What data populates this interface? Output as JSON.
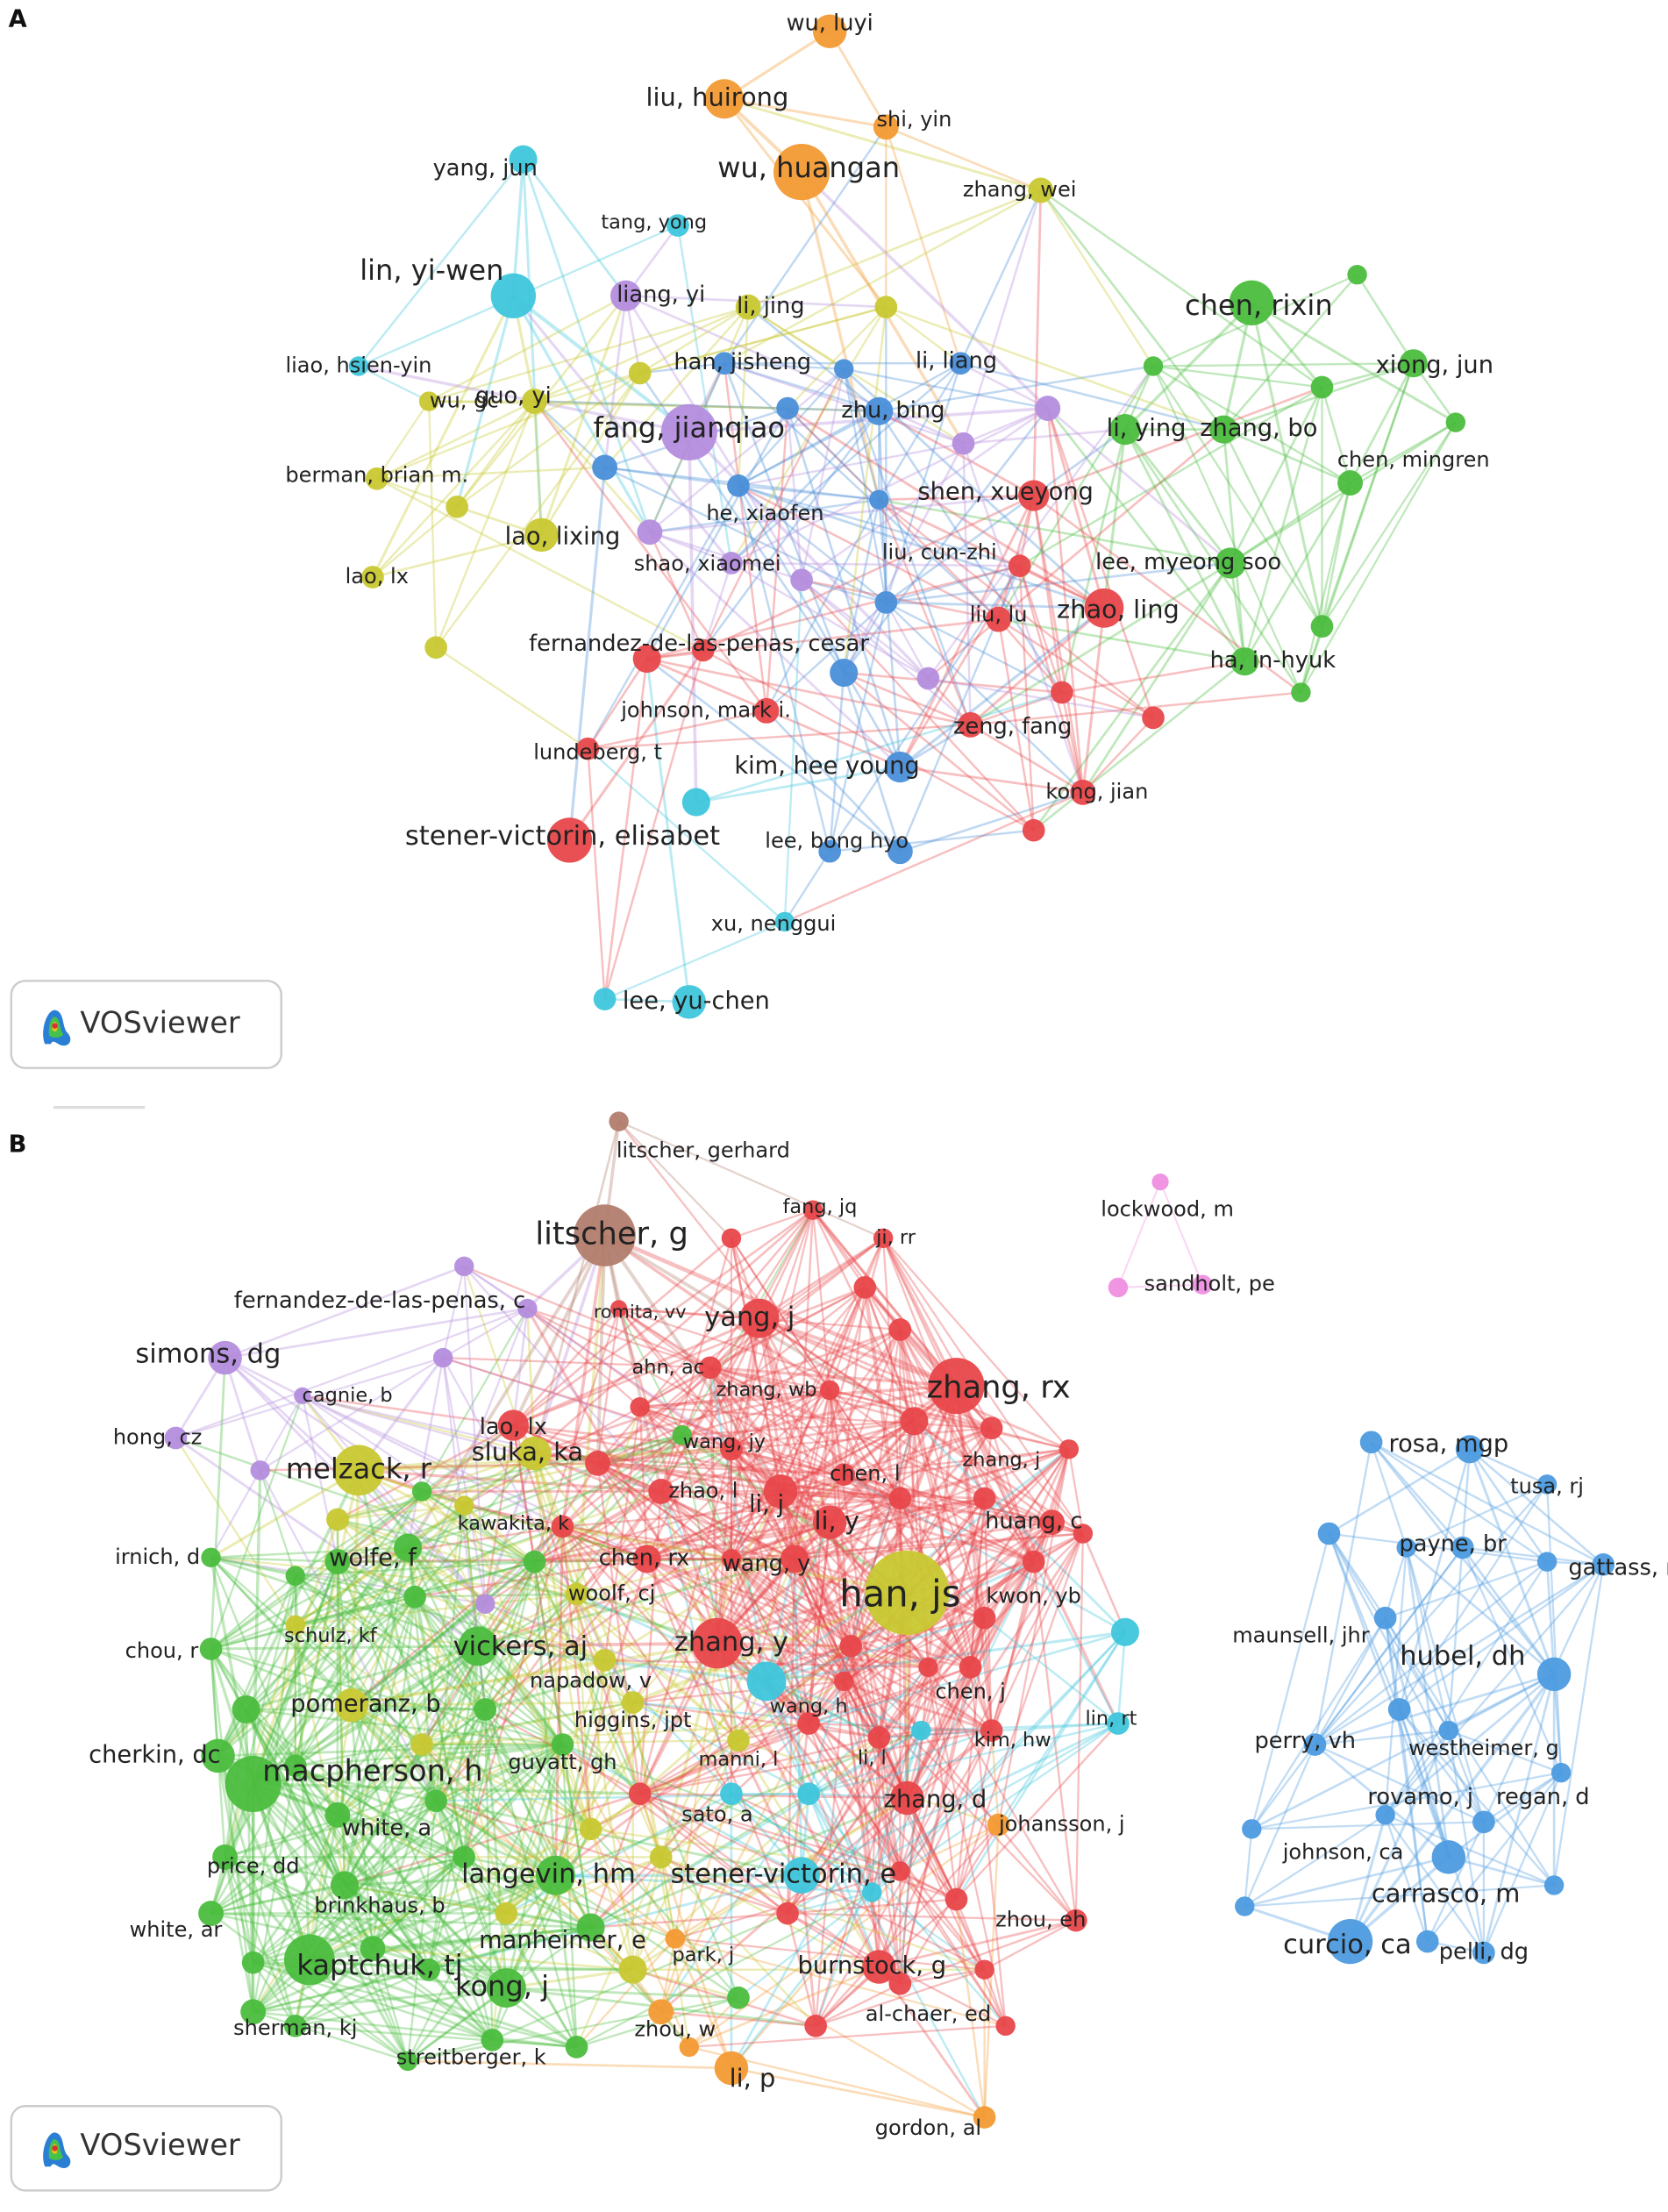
{
  "panels": [
    {
      "label": "A",
      "logo": "VOSviewer",
      "nodes": [
        {
          "label": "wu, luyi"
        },
        {
          "label": "liu, huirong"
        },
        {
          "label": "shi, yin"
        },
        {
          "label": "wu, huangan"
        },
        {
          "label": "yang, jun"
        },
        {
          "label": "zhang, wei"
        },
        {
          "label": "tang, yong"
        },
        {
          "label": "lin, yi-wen"
        },
        {
          "label": "liang, yi"
        },
        {
          "label": "li, jing"
        },
        {
          "label": "chen, rixin"
        },
        {
          "label": "liao, hsien-yin"
        },
        {
          "label": "han, jisheng"
        },
        {
          "label": "li, liang"
        },
        {
          "label": "xiong, jun"
        },
        {
          "label": "wu, gc"
        },
        {
          "label": "guo, yi"
        },
        {
          "label": "fang, jianqiao"
        },
        {
          "label": "zhu, bing"
        },
        {
          "label": "li, ying"
        },
        {
          "label": "zhang, bo"
        },
        {
          "label": "chen, mingren"
        },
        {
          "label": "berman, brian m."
        },
        {
          "label": "shen, xueyong"
        },
        {
          "label": "he, xiaofen"
        },
        {
          "label": "lao, lixing"
        },
        {
          "label": "shao, xiaomei"
        },
        {
          "label": "liu, cun-zhi"
        },
        {
          "label": "lee, myeong soo"
        },
        {
          "label": "lao, lx"
        },
        {
          "label": "zhao, ling"
        },
        {
          "label": "liu, lu"
        },
        {
          "label": "fernandez-de-las-penas, cesar"
        },
        {
          "label": "ha, in-hyuk"
        },
        {
          "label": "johnson, mark i."
        },
        {
          "label": "zeng, fang"
        },
        {
          "label": "lundeberg, t"
        },
        {
          "label": "kim, hee young"
        },
        {
          "label": "kong, jian"
        },
        {
          "label": "stener-victorin, elisabet"
        },
        {
          "label": "lee, bong hyo"
        },
        {
          "label": "xu, nenggui"
        },
        {
          "label": "lee, yu-chen"
        }
      ]
    },
    {
      "label": "B",
      "logo": "VOSviewer",
      "nodes": [
        {
          "label": "litscher, gerhard"
        },
        {
          "label": "litscher, g"
        },
        {
          "label": "fang, jq"
        },
        {
          "label": "ji, rr"
        },
        {
          "label": "lockwood, m"
        },
        {
          "label": "sandholt, pe"
        },
        {
          "label": "yang, j"
        },
        {
          "label": "romita, vv"
        },
        {
          "label": "fernandez-de-las-penas, c"
        },
        {
          "label": "simons, dg"
        },
        {
          "label": "ahn, ac"
        },
        {
          "label": "zhang, rx"
        },
        {
          "label": "cagnie, b"
        },
        {
          "label": "lao, lx"
        },
        {
          "label": "zhang, wb"
        },
        {
          "label": "hong, cz"
        },
        {
          "label": "melzack, r"
        },
        {
          "label": "sluka, ka"
        },
        {
          "label": "wang, jy"
        },
        {
          "label": "zhang, j"
        },
        {
          "label": "chen, l"
        },
        {
          "label": "zhao, l"
        },
        {
          "label": "li, j"
        },
        {
          "label": "li, y"
        },
        {
          "label": "irnich, d"
        },
        {
          "label": "kawakita, k"
        },
        {
          "label": "huang, c"
        },
        {
          "label": "wolfe, f"
        },
        {
          "label": "chen, rx"
        },
        {
          "label": "wang, y"
        },
        {
          "label": "han, js"
        },
        {
          "label": "kwon, yb"
        },
        {
          "label": "woolf, cj"
        },
        {
          "label": "schulz, kf"
        },
        {
          "label": "chou, r"
        },
        {
          "label": "vickers, aj"
        },
        {
          "label": "zhang, y"
        },
        {
          "label": "napadow, v"
        },
        {
          "label": "wang, h"
        },
        {
          "label": "chen, j"
        },
        {
          "label": "lin, rt"
        },
        {
          "label": "pomeranz, b"
        },
        {
          "label": "higgins, jpt"
        },
        {
          "label": "kim, hw"
        },
        {
          "label": "cherkin, dc"
        },
        {
          "label": "macpherson, h"
        },
        {
          "label": "manni, l"
        },
        {
          "label": "li, l"
        },
        {
          "label": "guyatt, gh"
        },
        {
          "label": "white, a"
        },
        {
          "label": "sato, a"
        },
        {
          "label": "zhang, d"
        },
        {
          "label": "johansson, j"
        },
        {
          "label": "price, dd"
        },
        {
          "label": "langevin, hm"
        },
        {
          "label": "stener-victorin, e"
        },
        {
          "label": "brinkhaus, b"
        },
        {
          "label": "zhou, eh"
        },
        {
          "label": "white, ar"
        },
        {
          "label": "manheimer, e"
        },
        {
          "label": "kaptchuk, tj"
        },
        {
          "label": "park, j"
        },
        {
          "label": "burnstock, g"
        },
        {
          "label": "kong, j"
        },
        {
          "label": "sherman, kj"
        },
        {
          "label": "al-chaer, ed"
        },
        {
          "label": "zhou, w"
        },
        {
          "label": "streitberger, k"
        },
        {
          "label": "li, p"
        },
        {
          "label": "gordon, al"
        },
        {
          "label": "rosa, mgp"
        },
        {
          "label": "tusa, rj"
        },
        {
          "label": "payne, br"
        },
        {
          "label": "gattass, r"
        },
        {
          "label": "maunsell, jhr"
        },
        {
          "label": "hubel, dh"
        },
        {
          "label": "perry, vh"
        },
        {
          "label": "westheimer, g"
        },
        {
          "label": "rovamo, j"
        },
        {
          "label": "regan, d"
        },
        {
          "label": "johnson, ca"
        },
        {
          "label": "carrasco, m"
        },
        {
          "label": "curcio, ca"
        },
        {
          "label": "pelli, dg"
        }
      ]
    }
  ]
}
